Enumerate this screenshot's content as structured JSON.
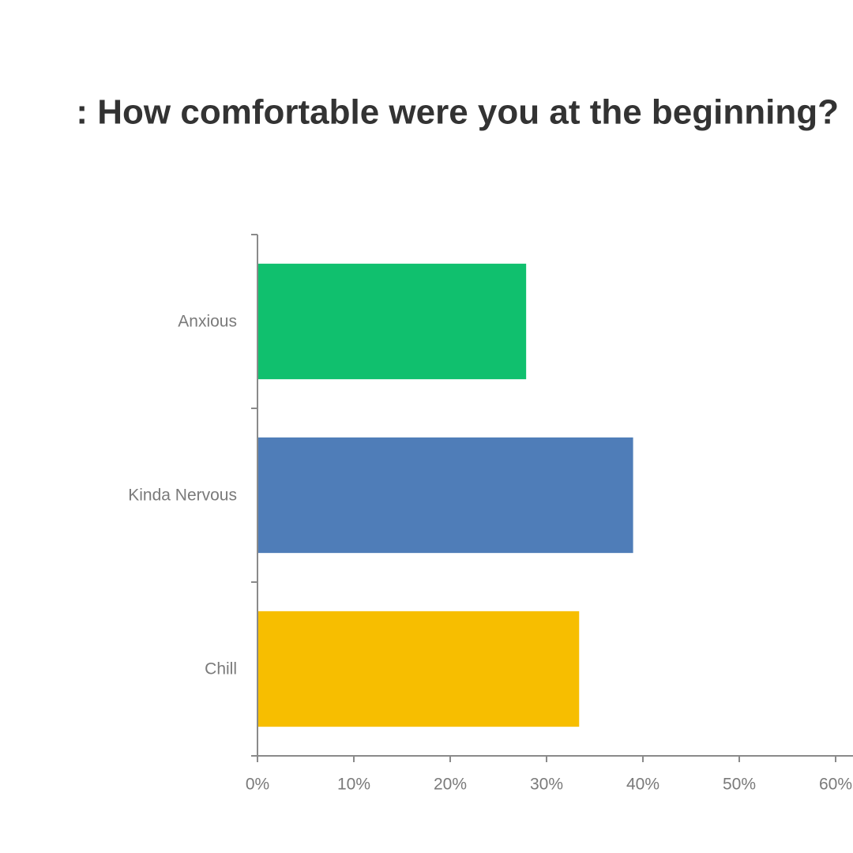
{
  "chart_data": {
    "type": "bar",
    "orientation": "horizontal",
    "title": ": How comfortable were you at the beginning?",
    "categories": [
      "Anxious",
      "Kinda Nervous",
      "Chill"
    ],
    "values": [
      27.8,
      38.9,
      33.3
    ],
    "colors": [
      "#10c06e",
      "#4f7db8",
      "#f7be00"
    ],
    "xlim": [
      0,
      60
    ],
    "xticks": [
      {
        "value": 0,
        "label": "0%"
      },
      {
        "value": 10,
        "label": "10%"
      },
      {
        "value": 20,
        "label": "20%"
      },
      {
        "value": 30,
        "label": "30%"
      },
      {
        "value": 40,
        "label": "40%"
      },
      {
        "value": 50,
        "label": "50%"
      },
      {
        "value": 60,
        "label": "60%"
      }
    ],
    "grid": false
  }
}
